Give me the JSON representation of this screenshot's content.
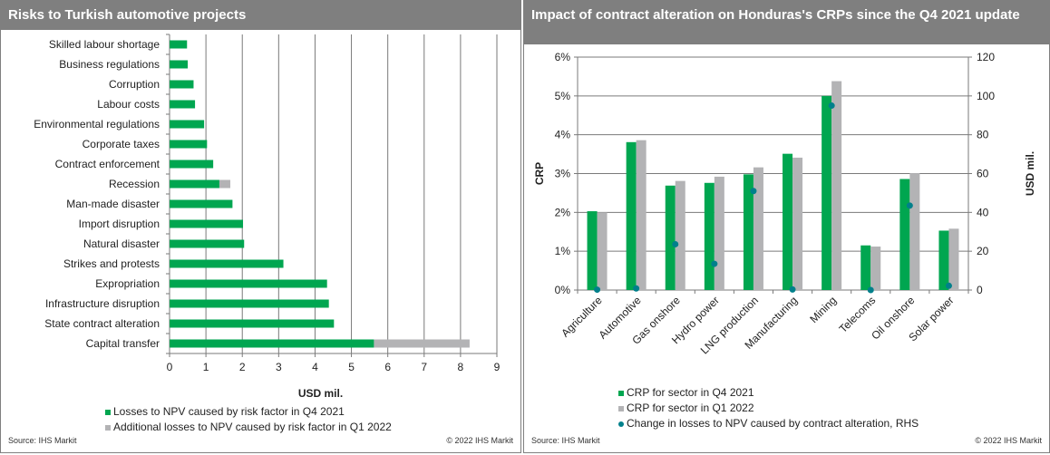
{
  "colors": {
    "green": "#00a650",
    "gray": "#b3b3b5",
    "teal": "#00808b",
    "header_bg": "#7f7f7f",
    "grid": "#7a7a7a"
  },
  "left_panel": {
    "title": "Risks to Turkish automotive projects",
    "source": "Source: IHS Markit",
    "copyright": "© 2022 IHS Markit"
  },
  "right_panel": {
    "title": "Impact of contract alteration on Honduras's CRPs since the Q4 2021 update",
    "source": "Source: IHS Markit",
    "copyright": "© 2022 IHS Markit"
  },
  "chart_data": [
    {
      "type": "bar",
      "orientation": "horizontal",
      "stacked": true,
      "title": "Risks to Turkish automotive projects",
      "xlabel": "USD mil.",
      "ylabel": "",
      "xlim": [
        0,
        9
      ],
      "xticks": [
        "0",
        "1",
        "2",
        "3",
        "4",
        "5",
        "6",
        "7",
        "8",
        "9"
      ],
      "grid": true,
      "legend_position": "bottom",
      "categories": [
        "Skilled labour shortage",
        "Business regulations",
        "Corruption",
        "Labour costs",
        "Environmental regulations",
        "Corporate taxes",
        "Contract enforcement",
        "Recession",
        "Man-made disaster",
        "Import disruption",
        "Natural disaster",
        "Strikes and protests",
        "Expropriation",
        "Infrastructure disruption",
        "State contract alteration",
        "Capital transfer"
      ],
      "series": [
        {
          "name": "Losses to NPV caused by risk factor in Q4 2021",
          "color": "#00a650",
          "values": [
            0.48,
            0.5,
            0.66,
            0.7,
            0.95,
            1.03,
            1.2,
            1.37,
            1.73,
            2.02,
            2.05,
            3.13,
            4.33,
            4.38,
            4.52,
            5.62
          ]
        },
        {
          "name": "Additional losses to NPV caused by risk factor in Q1 2022",
          "color": "#b3b3b5",
          "values": [
            0,
            0,
            0,
            0,
            0,
            0,
            0,
            0.3,
            0,
            0,
            0,
            0,
            0,
            0,
            0,
            2.63
          ]
        }
      ]
    },
    {
      "type": "bar",
      "title": "Impact of contract alteration on Honduras's CRPs since the Q4 2021 update",
      "xlabel": "",
      "ylabel": "CRP",
      "y2label": "USD mil.",
      "ylim": [
        0,
        6
      ],
      "y2lim": [
        0,
        120
      ],
      "yticks": [
        "0%",
        "1%",
        "2%",
        "3%",
        "4%",
        "5%",
        "6%"
      ],
      "y2ticks": [
        "0",
        "20",
        "40",
        "60",
        "80",
        "100",
        "120"
      ],
      "grid": true,
      "legend_position": "bottom",
      "categories": [
        "Agriculture",
        "Automotive",
        "Gas onshore",
        "Hydro power",
        "LNG production",
        "Manufacturing",
        "Mining",
        "Telecoms",
        "Oil onshore",
        "Solar power"
      ],
      "series": [
        {
          "name": "CRP for sector in Q4 2021",
          "type": "bar",
          "axis": "left",
          "unit": "%",
          "color": "#00a650",
          "values": [
            2.03,
            3.81,
            2.69,
            2.76,
            2.98,
            3.51,
            5.0,
            1.15,
            2.86,
            1.53
          ]
        },
        {
          "name": "CRP for sector in Q1 2022",
          "type": "bar",
          "axis": "left",
          "unit": "%",
          "color": "#b3b3b5",
          "values": [
            2.0,
            3.86,
            2.81,
            2.92,
            3.16,
            3.41,
            5.38,
            1.12,
            3.01,
            1.58
          ]
        },
        {
          "name": "Change in losses to NPV caused by contract alteration, RHS",
          "type": "scatter",
          "axis": "right",
          "unit": "USD mil.",
          "color": "#00808b",
          "values": [
            0.2,
            0.8,
            23.6,
            13.5,
            51.0,
            0.3,
            95.0,
            0.0,
            43.5,
            2.2
          ]
        }
      ]
    }
  ]
}
